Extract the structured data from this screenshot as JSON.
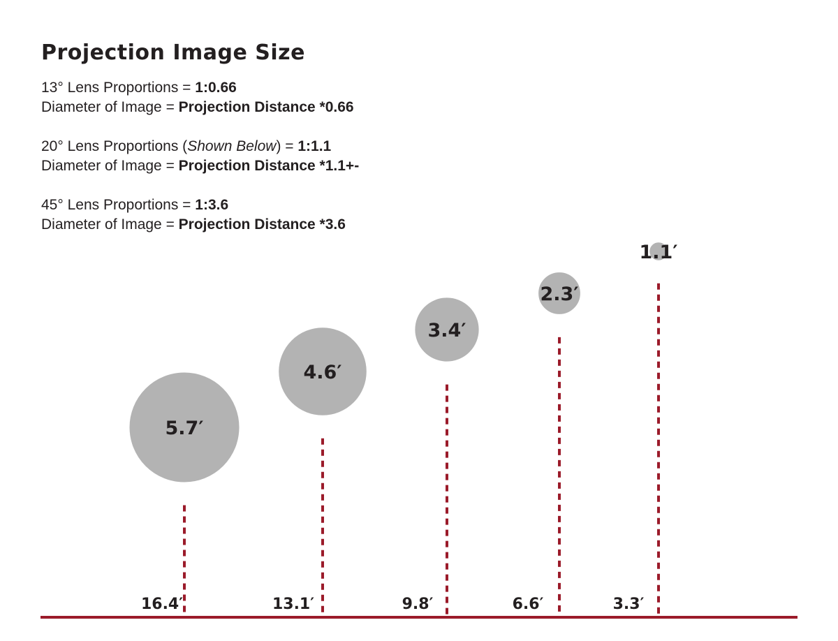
{
  "title": "Projection Image Size",
  "lens_specs": [
    {
      "line1": {
        "prefix": "13° Lens Proportions = ",
        "value": "1:0.66"
      },
      "line2": {
        "prefix": "Diameter of Image = ",
        "value": "Projection Distance *0.66"
      }
    },
    {
      "line1": {
        "prefix": "20° Lens Proportions (",
        "note": "Shown Below",
        "suffix": ") = ",
        "value": "1:1.1"
      },
      "line2": {
        "prefix": "Diameter of Image = ",
        "value": "Projection Distance *1.1+-"
      }
    },
    {
      "line1": {
        "prefix": "45° Lens Proportions = ",
        "value": "1:3.6"
      },
      "line2": {
        "prefix": "Diameter of Image = ",
        "value": "Projection Distance *3.6"
      }
    }
  ],
  "projections": [
    {
      "diameter_ft": 5.7,
      "diameter_label": "5.7′",
      "distance_ft": 16.4,
      "distance_label": "16.4′"
    },
    {
      "diameter_ft": 4.6,
      "diameter_label": "4.6′",
      "distance_ft": 13.1,
      "distance_label": "13.1′"
    },
    {
      "diameter_ft": 3.4,
      "diameter_label": "3.4′",
      "distance_ft": 9.8,
      "distance_label": "9.8′"
    },
    {
      "diameter_ft": 2.3,
      "diameter_label": "2.3′",
      "distance_ft": 6.6,
      "distance_label": "6.6′"
    },
    {
      "diameter_ft": 1.1,
      "diameter_label": "1.1′",
      "distance_ft": 3.3,
      "distance_label": "3.3′"
    }
  ],
  "colors": {
    "circle_fill": "#b3b3b3",
    "marker_red": "#9b1b2a",
    "text": "#231f20"
  }
}
